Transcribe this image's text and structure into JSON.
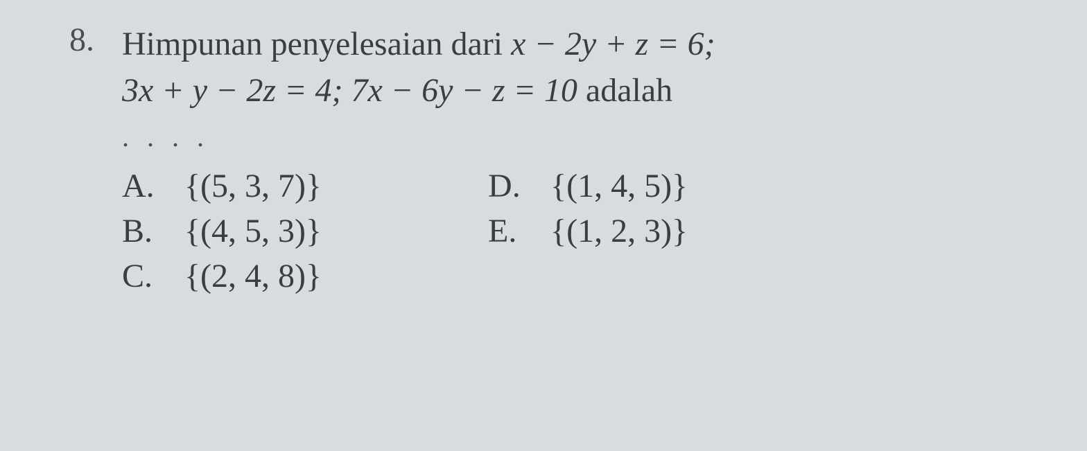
{
  "question": {
    "number": "8.",
    "text_line1_prefix": "Himpunan penyelesaian dari ",
    "text_line1_equation": "x − 2y + z = 6;",
    "text_line2_prefix": "3x + y − 2z = 4; 7x − 6y − z = 10 ",
    "text_line2_suffix": "adalah",
    "dots": ". . . ."
  },
  "options": {
    "left": [
      {
        "letter": "A.",
        "value": "{(5, 3, 7)}"
      },
      {
        "letter": "B.",
        "value": "{(4, 5, 3)}"
      },
      {
        "letter": "C.",
        "value": "{(2, 4, 8)}"
      }
    ],
    "right": [
      {
        "letter": "D.",
        "value": "{(1, 4, 5)}"
      },
      {
        "letter": "E.",
        "value": "{(1, 2, 3)}"
      }
    ]
  },
  "colors": {
    "background": "#d8dce0",
    "text": "#3a3d42"
  },
  "typography": {
    "font_family": "Georgia, Times New Roman, serif",
    "question_fontsize": 48,
    "option_fontsize": 48
  }
}
